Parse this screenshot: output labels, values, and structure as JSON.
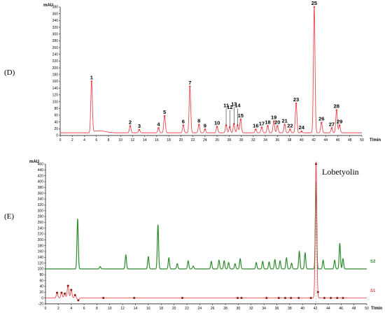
{
  "chart_data": [
    {
      "panel": "(D)",
      "type": "line",
      "ylabel": "mAU",
      "xlabel": "T/min",
      "xlim": [
        0,
        50
      ],
      "ylim": [
        0,
        380
      ],
      "xticks": [
        0,
        2,
        4,
        6,
        8,
        10,
        12,
        14,
        16,
        18,
        20,
        22,
        24,
        26,
        28,
        30,
        32,
        34,
        36,
        38,
        40,
        42,
        44,
        46,
        48,
        50
      ],
      "yticks": [
        0,
        20,
        40,
        60,
        80,
        100,
        120,
        140,
        160,
        180,
        200,
        220,
        240,
        260,
        280,
        300,
        320,
        340,
        360,
        380
      ],
      "color": "#e8474d",
      "baseline": 8,
      "peaks": [
        {
          "label": "1",
          "t": 5.2,
          "h": 160
        },
        {
          "label": "2",
          "t": 11.6,
          "h": 28
        },
        {
          "label": "3",
          "t": 13.1,
          "h": 17
        },
        {
          "label": "4",
          "t": 16.3,
          "h": 22
        },
        {
          "label": "5",
          "t": 17.3,
          "h": 58
        },
        {
          "label": "6",
          "t": 20.4,
          "h": 30
        },
        {
          "label": "7",
          "t": 21.5,
          "h": 145
        },
        {
          "label": "8",
          "t": 23.0,
          "h": 32
        },
        {
          "label": "9",
          "t": 24.0,
          "h": 18
        },
        {
          "label": "10",
          "t": 26.0,
          "h": 26
        },
        {
          "label": "11",
          "t": 27.5,
          "h": 30
        },
        {
          "label": "12",
          "t": 28.1,
          "h": 25
        },
        {
          "label": "13",
          "t": 28.8,
          "h": 34
        },
        {
          "label": "14",
          "t": 29.4,
          "h": 30
        },
        {
          "label": "15",
          "t": 29.9,
          "h": 48
        },
        {
          "label": "16",
          "t": 32.4,
          "h": 18
        },
        {
          "label": "17",
          "t": 33.4,
          "h": 24
        },
        {
          "label": "18",
          "t": 34.4,
          "h": 28
        },
        {
          "label": "19",
          "t": 35.4,
          "h": 42
        },
        {
          "label": "20",
          "t": 36.0,
          "h": 28
        },
        {
          "label": "21",
          "t": 37.2,
          "h": 32
        },
        {
          "label": "22",
          "t": 38.1,
          "h": 18
        },
        {
          "label": "23",
          "t": 39.1,
          "h": 95
        },
        {
          "label": "24",
          "t": 40.0,
          "h": 12
        },
        {
          "label": "25",
          "t": 42.1,
          "h": 380
        },
        {
          "label": "26",
          "t": 43.3,
          "h": 38
        },
        {
          "label": "27",
          "t": 45.0,
          "h": 22
        },
        {
          "label": "28",
          "t": 45.8,
          "h": 75
        },
        {
          "label": "29",
          "t": 46.3,
          "h": 30
        }
      ]
    },
    {
      "panel": "(E)",
      "type": "line",
      "ylabel": "mAU",
      "xlabel": "T/min",
      "xlim": [
        0,
        50
      ],
      "ylim": [
        -20,
        460
      ],
      "xticks": [
        0,
        2,
        4,
        6,
        8,
        10,
        12,
        14,
        16,
        18,
        20,
        22,
        24,
        26,
        28,
        30,
        32,
        34,
        36,
        38,
        40,
        42,
        44,
        46,
        48,
        50
      ],
      "yticks": [
        -20,
        0,
        20,
        40,
        60,
        80,
        100,
        120,
        140,
        160,
        180,
        200,
        220,
        240,
        260,
        280,
        300,
        320,
        340,
        360,
        380,
        400,
        420,
        440,
        460
      ],
      "annotation": "Lobetyolin",
      "annotation_t": 42.1,
      "series": [
        {
          "name": "S2",
          "color": "#2e8b2e",
          "baseline": 100,
          "peaks": [
            {
              "t": 5.0,
              "h": 272
            },
            {
              "t": 8.5,
              "h": 108
            },
            {
              "t": 12.5,
              "h": 148
            },
            {
              "t": 16.0,
              "h": 142
            },
            {
              "t": 17.5,
              "h": 252
            },
            {
              "t": 19.2,
              "h": 138
            },
            {
              "t": 20.5,
              "h": 118
            },
            {
              "t": 22.2,
              "h": 128
            },
            {
              "t": 23.0,
              "h": 110
            },
            {
              "t": 25.8,
              "h": 126
            },
            {
              "t": 27.0,
              "h": 130
            },
            {
              "t": 27.8,
              "h": 128
            },
            {
              "t": 28.5,
              "h": 122
            },
            {
              "t": 29.5,
              "h": 118
            },
            {
              "t": 30.3,
              "h": 135
            },
            {
              "t": 32.8,
              "h": 122
            },
            {
              "t": 33.8,
              "h": 126
            },
            {
              "t": 34.8,
              "h": 124
            },
            {
              "t": 35.7,
              "h": 132
            },
            {
              "t": 36.5,
              "h": 128
            },
            {
              "t": 37.5,
              "h": 138
            },
            {
              "t": 38.3,
              "h": 120
            },
            {
              "t": 39.5,
              "h": 160
            },
            {
              "t": 40.4,
              "h": 155
            },
            {
              "t": 42.1,
              "h": 400
            },
            {
              "t": 43.2,
              "h": 130
            },
            {
              "t": 45.0,
              "h": 130
            },
            {
              "t": 45.8,
              "h": 188
            },
            {
              "t": 46.3,
              "h": 135
            }
          ]
        },
        {
          "name": "S1",
          "color": "#e8474d",
          "baseline": 0,
          "peaks": [
            {
              "t": 1.8,
              "h": 18
            },
            {
              "t": 2.5,
              "h": 18
            },
            {
              "t": 3.0,
              "h": 15
            },
            {
              "t": 3.5,
              "h": 42
            },
            {
              "t": 4.0,
              "h": 28
            },
            {
              "t": 4.6,
              "h": 10
            },
            {
              "t": 5.1,
              "h": -8
            },
            {
              "t": 42.1,
              "h": 468
            }
          ],
          "markers": [
            1.8,
            2.5,
            3.0,
            3.5,
            4.0,
            4.6,
            5.1,
            9.0,
            13.8,
            21.3,
            29.9,
            30.5,
            34.4,
            36.3,
            37.3,
            38.2,
            39.4,
            41.3,
            42.4,
            43.4,
            44.4,
            45.4,
            46.3
          ]
        }
      ]
    }
  ]
}
